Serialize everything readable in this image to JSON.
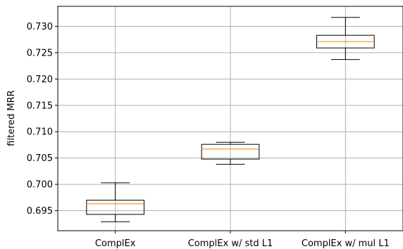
{
  "chart_data": {
    "type": "box",
    "title": "",
    "xlabel": "",
    "ylabel": "filtered MRR",
    "ylim": [
      0.6912,
      0.7338
    ],
    "grid": true,
    "yticks": [
      0.695,
      0.7,
      0.705,
      0.71,
      0.715,
      0.72,
      0.725,
      0.73
    ],
    "ytick_labels": [
      "0.695",
      "0.700",
      "0.705",
      "0.710",
      "0.715",
      "0.720",
      "0.725",
      "0.730"
    ],
    "categories": [
      "ComplEx",
      "ComplEx w/ std L1",
      "ComplEx w/ mul L1"
    ],
    "boxes": [
      {
        "whisker_low": 0.6929,
        "q1": 0.6943,
        "median": 0.6963,
        "q3": 0.697,
        "whisker_high": 0.7003
      },
      {
        "whisker_low": 0.7038,
        "q1": 0.7048,
        "median": 0.7067,
        "q3": 0.7076,
        "whisker_high": 0.708
      },
      {
        "whisker_low": 0.7237,
        "q1": 0.7259,
        "median": 0.7271,
        "q3": 0.7283,
        "whisker_high": 0.7317
      }
    ],
    "colors": {
      "box": "#000000",
      "median": "#ff7f0e",
      "grid": "#b0b0b0"
    }
  }
}
